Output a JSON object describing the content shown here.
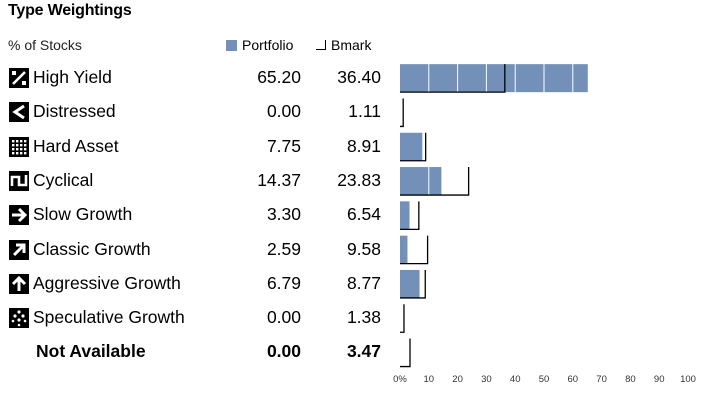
{
  "title": "Type Weightings",
  "subtitle": "% of Stocks",
  "legend": {
    "portfolio": "Portfolio",
    "bmark": "Bmark"
  },
  "colors": {
    "portfolio": "#7390b8",
    "bmark": "#000000",
    "icon": "#000000"
  },
  "chart_data": {
    "type": "bar",
    "title": "Type Weightings",
    "subtitle": "% of Stocks",
    "orientation": "horizontal",
    "categories": [
      "High Yield",
      "Distressed",
      "Hard Asset",
      "Cyclical",
      "Slow Growth",
      "Classic Growth",
      "Aggressive Growth",
      "Speculative Growth",
      "Not Available"
    ],
    "series": [
      {
        "name": "Portfolio",
        "values": [
          65.2,
          0.0,
          7.75,
          14.37,
          3.3,
          2.59,
          6.79,
          0.0,
          0.0
        ]
      },
      {
        "name": "Bmark",
        "values": [
          36.4,
          1.11,
          8.91,
          23.83,
          6.54,
          9.58,
          8.77,
          1.38,
          3.47
        ]
      }
    ],
    "value_labels": {
      "portfolio": [
        "65.20",
        "0.00",
        "7.75",
        "14.37",
        "3.30",
        "2.59",
        "6.79",
        "0.00",
        "0.00"
      ],
      "bmark": [
        "36.40",
        "1.11",
        "8.91",
        "23.83",
        "6.54",
        "9.58",
        "8.77",
        "1.38",
        "3.47"
      ]
    },
    "icons": [
      "percent-icon",
      "chevron-left-icon",
      "grid-icon",
      "wave-icon",
      "arrow-right-icon",
      "arrow-up-right-icon",
      "arrow-up-icon",
      "dots-icon",
      ""
    ],
    "bold_rows": [
      false,
      false,
      false,
      false,
      false,
      false,
      false,
      false,
      true
    ],
    "xlim": [
      0,
      100
    ],
    "xticks": [
      "0%",
      "10",
      "20",
      "30",
      "40",
      "50",
      "60",
      "70",
      "80",
      "90",
      "100"
    ],
    "grid": "vertical every 10 within portfolio bars",
    "legend_position": "top"
  }
}
